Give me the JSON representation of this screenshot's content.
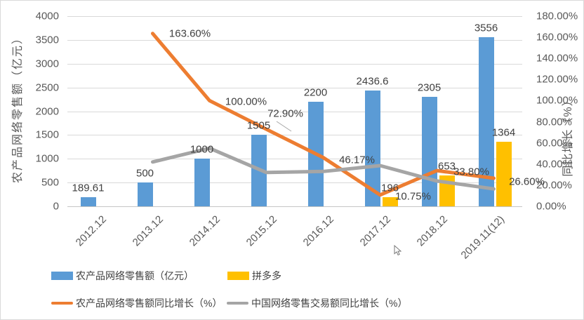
{
  "colors": {
    "bar_blue": "#5B9BD5",
    "bar_yellow": "#FFC000",
    "line_orange": "#ED7D31",
    "line_gray": "#A5A5A5",
    "gridline": "#D9D9D9",
    "tick_text": "#595959",
    "label_text": "#404040"
  },
  "chart_data": {
    "type": "combo-bar-line",
    "grid": "horizontal-on",
    "categories": [
      "2012.12",
      "2013.12",
      "2014.12",
      "2015.12",
      "2016.12",
      "2017.12",
      "2018.12",
      "2019.11(12)"
    ],
    "left_axis": {
      "title": "农产品网络零售额（亿元）",
      "min": 0,
      "max": 4000,
      "step": 500,
      "ticks": [
        "4000",
        "3500",
        "3000",
        "2500",
        "2000",
        "1500",
        "1000",
        "500",
        "0"
      ]
    },
    "right_axis": {
      "title": "同比增长（%）",
      "min": 0,
      "max": 180,
      "step": 20,
      "ticks": [
        "180.00%",
        "160.00%",
        "140.00%",
        "120.00%",
        "100.00%",
        "80.00%",
        "60.00%",
        "40.00%",
        "20.00%",
        "0.00%"
      ]
    },
    "series": [
      {
        "key": "agri-retail",
        "name": "农产品网络零售额（亿元）",
        "type": "bar",
        "axis": "left",
        "color": "#5B9BD5",
        "values": [
          189.61,
          500,
          1000,
          1505,
          2200,
          2436.6,
          2305,
          3556
        ],
        "labels": [
          "189.61",
          "500",
          "1000",
          "1505",
          "2200",
          "2436.6",
          "2305",
          "3556"
        ]
      },
      {
        "key": "pinduoduo",
        "name": "拼多多",
        "type": "bar",
        "axis": "left",
        "color": "#FFC000",
        "values": [
          null,
          null,
          null,
          null,
          null,
          196,
          653,
          1364
        ],
        "labels": [
          null,
          null,
          null,
          null,
          null,
          "196",
          "653",
          "1364"
        ]
      },
      {
        "key": "agri-growth",
        "name": "农产品网络零售额同比增长（%）",
        "type": "line",
        "axis": "right",
        "color": "#ED7D31",
        "values": [
          null,
          163.6,
          100.0,
          72.9,
          46.17,
          10.75,
          33.8,
          26.6
        ],
        "labels": [
          null,
          "163.60%",
          "100.00%",
          "72.90%",
          "46.17%",
          "10.75%",
          "33.80%",
          "26.60%"
        ],
        "label_offsets": [
          null,
          [
            53,
            0
          ],
          [
            52,
            2
          ],
          [
            27,
            -22
          ],
          [
            48,
            3
          ],
          [
            47,
            2
          ],
          [
            49,
            2
          ],
          [
            47,
            5
          ]
        ],
        "label_leader": {
          "x1": 393,
          "y1": 172,
          "x2": 414,
          "y2": 186
        }
      },
      {
        "key": "china-growth",
        "name": "中国网络零售交易额同比增长（%）",
        "type": "line",
        "axis": "right",
        "color": "#A5A5A5",
        "values": [
          null,
          42,
          55,
          32,
          33,
          38.5,
          24,
          16.5
        ],
        "labels": [
          null,
          null,
          null,
          null,
          null,
          null,
          null,
          null
        ]
      }
    ],
    "legend": {
      "position": "bottom",
      "items": [
        {
          "label": "农产品网络零售额（亿元）",
          "swatch": "bar",
          "color": "#5B9BD5"
        },
        {
          "label": "拼多多",
          "swatch": "bar",
          "color": "#FFC000"
        },
        {
          "label": "农产品网络零售额同比增长（%）",
          "swatch": "line",
          "color": "#ED7D31"
        },
        {
          "label": "中国网络零售交易额同比增长（%）",
          "swatch": "line",
          "color": "#A5A5A5"
        }
      ]
    }
  }
}
